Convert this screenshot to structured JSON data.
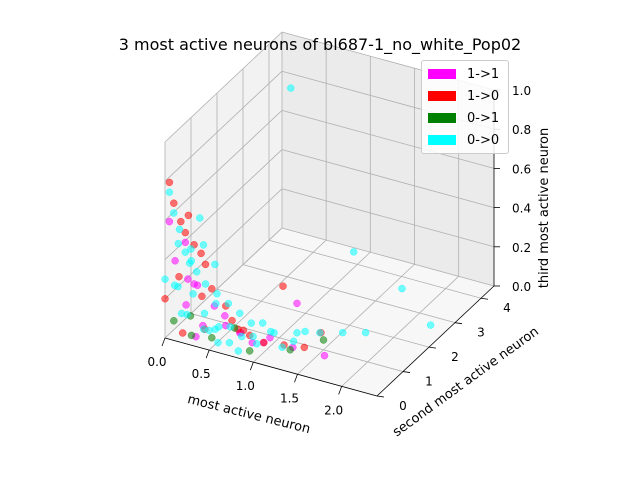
{
  "chart_data": {
    "type": "scatter",
    "projection": "3d",
    "title": "3 most active neurons of bl687-1_no_white_Pop02",
    "xlabel": "most active neuron",
    "ylabel": "second most active neuron",
    "zlabel": "third most active neuron",
    "xlim": [
      0.0,
      2.4
    ],
    "ylim": [
      0.0,
      4.5
    ],
    "zlim": [
      0.0,
      1.0
    ],
    "xticks": [
      "0.0",
      "0.5",
      "1.0",
      "1.5",
      "2.0"
    ],
    "yticks": [
      "0",
      "1",
      "2",
      "3",
      "4"
    ],
    "zticks": [
      "0.0",
      "0.2",
      "0.4",
      "0.6",
      "0.8",
      "1.0"
    ],
    "grid": true,
    "legend_position": "upper-right",
    "legend": [
      {
        "label": "1->1",
        "color": "#ff00ff"
      },
      {
        "label": "1->0",
        "color": "#ff0000"
      },
      {
        "label": "0->1",
        "color": "#008000"
      },
      {
        "label": "0->0",
        "color": "#00ffff"
      }
    ],
    "series": [
      {
        "name": "1->1",
        "color": "#ff00ff",
        "points": [
          [
            0.1,
            0.05,
            0.4
          ],
          [
            0.2,
            0.1,
            0.5
          ],
          [
            0.3,
            0.1,
            0.3
          ],
          [
            0.5,
            0.2,
            0.2
          ],
          [
            0.6,
            0.3,
            0.1
          ],
          [
            0.4,
            0.1,
            0.1
          ],
          [
            0.8,
            0.2,
            0.1
          ],
          [
            0.9,
            0.3,
            0.05
          ],
          [
            1.0,
            0.4,
            0.05
          ],
          [
            1.1,
            0.3,
            0.1
          ],
          [
            1.3,
            0.5,
            0.05
          ],
          [
            1.6,
            0.7,
            0.02
          ],
          [
            0.2,
            0.2,
            0.3
          ],
          [
            0.35,
            0.0,
            0.05
          ],
          [
            0.7,
            0.5,
            0.05
          ],
          [
            0.15,
            0.3,
            0.15
          ],
          [
            1.2,
            1.0,
            0.2
          ],
          [
            0.5,
            0.6,
            0.1
          ],
          [
            0.05,
            0.0,
            0.6
          ],
          [
            0.25,
            0.4,
            0.25
          ]
        ]
      },
      {
        "name": "1->0",
        "color": "#ff0000",
        "points": [
          [
            0.05,
            0.0,
            0.8
          ],
          [
            0.1,
            0.0,
            0.7
          ],
          [
            0.15,
            0.1,
            0.6
          ],
          [
            0.2,
            0.1,
            0.55
          ],
          [
            0.25,
            0.05,
            0.65
          ],
          [
            0.3,
            0.1,
            0.5
          ],
          [
            0.35,
            0.2,
            0.45
          ],
          [
            0.4,
            0.2,
            0.4
          ],
          [
            0.5,
            0.1,
            0.3
          ],
          [
            0.6,
            0.3,
            0.2
          ],
          [
            0.7,
            0.2,
            0.15
          ],
          [
            0.8,
            0.3,
            0.1
          ],
          [
            0.9,
            0.2,
            0.1
          ],
          [
            1.0,
            0.4,
            0.05
          ],
          [
            1.2,
            0.5,
            0.05
          ],
          [
            1.4,
            0.6,
            0.05
          ],
          [
            0.0,
            0.0,
            0.2
          ],
          [
            0.1,
            0.2,
            0.3
          ],
          [
            0.45,
            0.0,
            0.1
          ],
          [
            1.1,
            0.8,
            0.3
          ],
          [
            1.5,
            0.9,
            0.1
          ],
          [
            0.65,
            0.6,
            0.05
          ],
          [
            0.3,
            0.4,
            0.2
          ],
          [
            0.2,
            0.0,
            0.05
          ]
        ]
      },
      {
        "name": "0->1",
        "color": "#008000",
        "points": [
          [
            0.3,
            0.0,
            0.05
          ],
          [
            0.5,
            0.1,
            0.05
          ],
          [
            0.9,
            0.2,
            0.02
          ],
          [
            1.3,
            0.4,
            0.05
          ],
          [
            0.2,
            0.3,
            0.1
          ],
          [
            0.7,
            0.3,
            0.1
          ],
          [
            1.5,
            1.0,
            0.05
          ],
          [
            0.1,
            0.0,
            0.1
          ]
        ]
      },
      {
        "name": "0->0",
        "color": "#00ffff",
        "points": [
          [
            0.6,
            2.8,
            1.0
          ],
          [
            0.05,
            0.0,
            0.75
          ],
          [
            0.1,
            0.0,
            0.65
          ],
          [
            0.15,
            0.0,
            0.5
          ],
          [
            0.2,
            0.1,
            0.45
          ],
          [
            0.25,
            0.1,
            0.4
          ],
          [
            0.3,
            0.2,
            0.35
          ],
          [
            0.4,
            0.2,
            0.3
          ],
          [
            0.5,
            0.3,
            0.25
          ],
          [
            0.6,
            0.4,
            0.2
          ],
          [
            0.7,
            0.5,
            0.15
          ],
          [
            0.8,
            0.6,
            0.1
          ],
          [
            0.9,
            0.7,
            0.1
          ],
          [
            1.0,
            0.8,
            0.05
          ],
          [
            1.2,
            1.0,
            0.05
          ],
          [
            1.4,
            1.2,
            0.05
          ],
          [
            1.6,
            1.4,
            0.05
          ],
          [
            1.8,
            1.6,
            0.05
          ],
          [
            2.3,
            2.4,
            0.05
          ],
          [
            1.8,
            3.0,
            0.1
          ],
          [
            1.4,
            2.5,
            0.3
          ],
          [
            0.1,
            0.3,
            0.1
          ],
          [
            0.2,
            0.4,
            0.2
          ],
          [
            0.3,
            0.5,
            0.1
          ],
          [
            0.4,
            0.6,
            0.15
          ],
          [
            0.5,
            0.0,
            0.1
          ],
          [
            0.6,
            0.0,
            0.05
          ],
          [
            0.7,
            0.1,
            0.05
          ],
          [
            0.8,
            0.1,
            0.02
          ],
          [
            0.0,
            0.0,
            0.3
          ],
          [
            0.05,
            0.2,
            0.25
          ],
          [
            0.15,
            0.5,
            0.35
          ],
          [
            0.35,
            0.3,
            0.05
          ],
          [
            0.45,
            0.4,
            0.05
          ],
          [
            0.55,
            0.2,
            0.1
          ],
          [
            0.65,
            0.3,
            0.1
          ],
          [
            0.75,
            0.4,
            0.05
          ],
          [
            0.85,
            0.5,
            0.05
          ],
          [
            0.95,
            0.3,
            0.05
          ],
          [
            1.05,
            0.5,
            0.1
          ],
          [
            1.15,
            0.6,
            0.02
          ],
          [
            1.25,
            0.7,
            0.05
          ],
          [
            1.35,
            0.8,
            0.1
          ],
          [
            0.2,
            0.8,
            0.4
          ],
          [
            0.1,
            1.0,
            0.5
          ],
          [
            0.3,
            0.9,
            0.3
          ],
          [
            0.0,
            0.5,
            0.2
          ],
          [
            0.25,
            0.0,
            0.15
          ],
          [
            0.12,
            0.15,
            0.55
          ],
          [
            0.22,
            0.25,
            0.45
          ]
        ]
      }
    ]
  }
}
